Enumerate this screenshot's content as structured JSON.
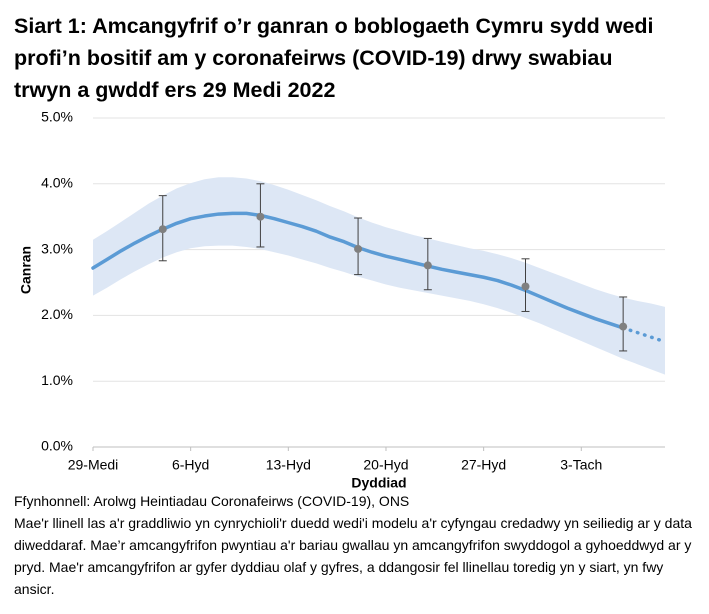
{
  "chart_data": {
    "type": "line",
    "title": "Siart 1: Amcangyfrif o’r ganran o boblogaeth Cymru sydd wedi profi’n bositif am y coronafeirws (COVID-19) drwy swabiau trwyn a gwddf ers 29 Medi 2022",
    "y_label": "Canran",
    "x_label": "Dyddiad",
    "source": "Ffynhonnell: Arolwg Heintiadau Coronafeirws (COVID-19), ONS",
    "note": "Mae'r llinell las a'r graddliwio yn cynrychioli'r duedd wedi'i modelu a'r cyfyngau credadwy yn seiliedig ar y data diweddaraf. Mae’r amcangyfrifon pwyntiau a'r bariau gwallau yn amcangyfrifon swyddogol a gyhoeddwyd ar y pryd. Mae'r amcangyfrifon ar gyfer dyddiau olaf y gyfres, a ddangosir fel llinellau toredig yn y siart, yn fwy ansicr.",
    "x": [
      0,
      1,
      2,
      3,
      4,
      5,
      6,
      7,
      8,
      9,
      10,
      11,
      12,
      13,
      14,
      15,
      16,
      17,
      18,
      19,
      20,
      21,
      22,
      23,
      24,
      25,
      26,
      27,
      28,
      29,
      30,
      31,
      32,
      33,
      34,
      35,
      36,
      37,
      38,
      39,
      40,
      41
    ],
    "xlim": [
      0,
      41
    ],
    "xticks": [
      {
        "value": 0,
        "label": "29-Medi"
      },
      {
        "value": 7,
        "label": "6-Hyd"
      },
      {
        "value": 14,
        "label": "13-Hyd"
      },
      {
        "value": 21,
        "label": "20-Hyd"
      },
      {
        "value": 28,
        "label": "27-Hyd"
      },
      {
        "value": 35,
        "label": "3-Tach"
      }
    ],
    "ylim": [
      0,
      5
    ],
    "yticks": [
      {
        "value": 0,
        "label": "0.0%"
      },
      {
        "value": 1,
        "label": "1.0%"
      },
      {
        "value": 2,
        "label": "2.0%"
      },
      {
        "value": 3,
        "label": "3.0%"
      },
      {
        "value": 4,
        "label": "4.0%"
      },
      {
        "value": 5,
        "label": "5.0%"
      }
    ],
    "grid": true,
    "band": {
      "color": "#dde7f5",
      "upper": [
        3.15,
        3.28,
        3.42,
        3.56,
        3.7,
        3.82,
        3.93,
        4.01,
        4.07,
        4.1,
        4.1,
        4.08,
        4.04,
        3.98,
        3.91,
        3.83,
        3.75,
        3.66,
        3.58,
        3.49,
        3.41,
        3.34,
        3.28,
        3.22,
        3.17,
        3.12,
        3.07,
        3.02,
        2.98,
        2.93,
        2.87,
        2.8,
        2.72,
        2.64,
        2.56,
        2.48,
        2.4,
        2.33,
        2.27,
        2.22,
        2.18,
        2.13
      ],
      "lower": [
        2.3,
        2.42,
        2.55,
        2.67,
        2.78,
        2.88,
        2.96,
        3.02,
        3.05,
        3.06,
        3.06,
        3.04,
        3.01,
        2.96,
        2.91,
        2.85,
        2.79,
        2.72,
        2.66,
        2.59,
        2.53,
        2.47,
        2.42,
        2.38,
        2.34,
        2.3,
        2.26,
        2.22,
        2.17,
        2.11,
        2.04,
        1.96,
        1.88,
        1.79,
        1.7,
        1.61,
        1.52,
        1.43,
        1.34,
        1.26,
        1.18,
        1.1
      ]
    },
    "series": [
      {
        "color": "#5b9bd5",
        "dashed": false,
        "values": [
          2.72,
          2.85,
          2.98,
          3.1,
          3.21,
          3.31,
          3.4,
          3.47,
          3.51,
          3.54,
          3.55,
          3.55,
          3.52,
          3.47,
          3.41,
          3.35,
          3.28,
          3.19,
          3.12,
          3.03,
          2.96,
          2.9,
          2.85,
          2.8,
          2.75,
          2.7,
          2.66,
          2.62,
          2.58,
          2.53,
          2.46,
          2.38,
          2.29,
          2.2,
          2.11,
          2.03,
          1.95,
          1.88,
          1.81,
          null,
          null,
          null
        ]
      },
      {
        "color": "#5b9bd5",
        "dashed": true,
        "values": [
          null,
          null,
          null,
          null,
          null,
          null,
          null,
          null,
          null,
          null,
          null,
          null,
          null,
          null,
          null,
          null,
          null,
          null,
          null,
          null,
          null,
          null,
          null,
          null,
          null,
          null,
          null,
          null,
          null,
          null,
          null,
          null,
          null,
          null,
          null,
          null,
          null,
          null,
          1.81,
          1.74,
          1.67,
          1.6
        ]
      }
    ],
    "estimates": {
      "color": "#808080",
      "x": [
        5,
        12,
        19,
        24,
        31,
        38
      ],
      "values": [
        3.31,
        3.5,
        3.01,
        2.76,
        2.44,
        1.83
      ],
      "lower": [
        2.83,
        3.04,
        2.62,
        2.39,
        2.06,
        1.46
      ],
      "upper": [
        3.82,
        4.0,
        3.48,
        3.17,
        2.86,
        2.28
      ]
    }
  }
}
